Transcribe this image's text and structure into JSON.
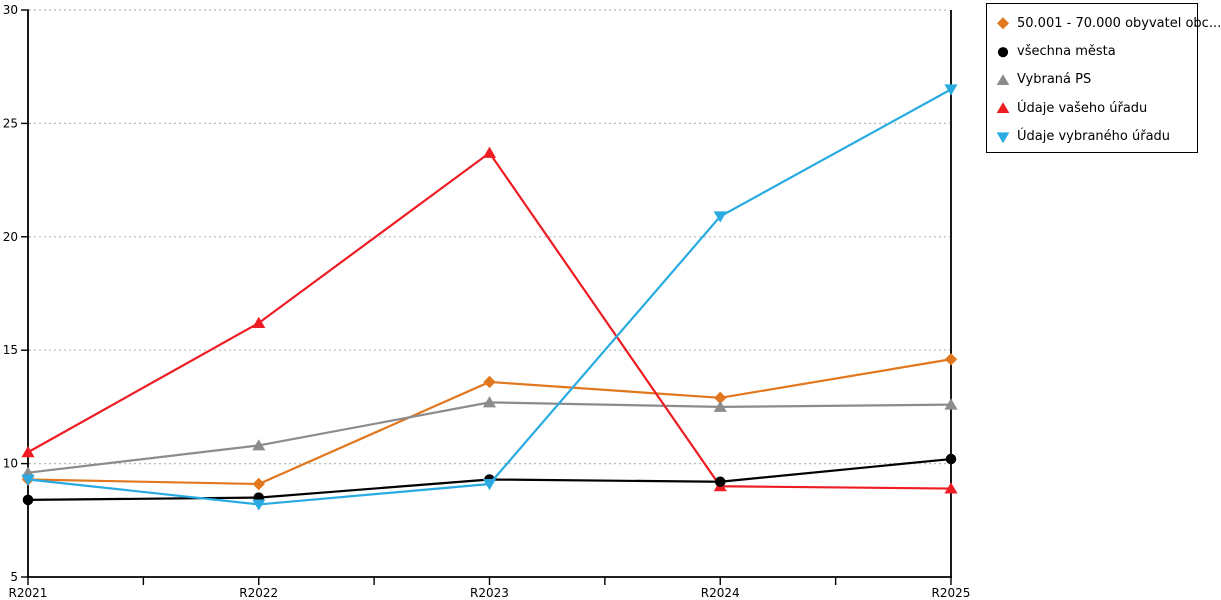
{
  "chart_data": {
    "type": "line",
    "categories": [
      "R2021",
      "R2022",
      "R2023",
      "R2024",
      "R2025"
    ],
    "series": [
      {
        "name": "50.001 - 70.000 obyvatel obc...",
        "marker": "diamond",
        "color": "#E1771E",
        "values": [
          9.3,
          9.1,
          13.6,
          12.9,
          14.6
        ]
      },
      {
        "name": "všechna města",
        "marker": "circle",
        "color": "#000000",
        "values": [
          8.4,
          8.5,
          9.3,
          9.2,
          10.2
        ]
      },
      {
        "name": "Vybraná PS",
        "marker": "triangle-up",
        "color": "#8C8C8C",
        "values": [
          9.6,
          10.8,
          12.7,
          12.5,
          12.6
        ]
      },
      {
        "name": "Údaje vašeho úřadu",
        "marker": "triangle-up",
        "color": "#EE1C23",
        "values": [
          10.5,
          16.2,
          23.7,
          9.0,
          8.9
        ]
      },
      {
        "name": "Údaje vybraného úřadu",
        "marker": "triangle-down",
        "color": "#29ABE2",
        "values": [
          9.3,
          8.2,
          9.1,
          20.9,
          26.5
        ]
      }
    ],
    "draw_order": [
      0,
      2,
      3,
      1,
      4
    ],
    "title": "",
    "xlabel": "",
    "ylabel": "",
    "ylim": [
      5,
      30
    ],
    "y_ticks": [
      5,
      10,
      15,
      20,
      25,
      30
    ],
    "grid": true,
    "grid_color": "#B8B8B8",
    "axis_color": "#000000",
    "legend_position": "right"
  }
}
